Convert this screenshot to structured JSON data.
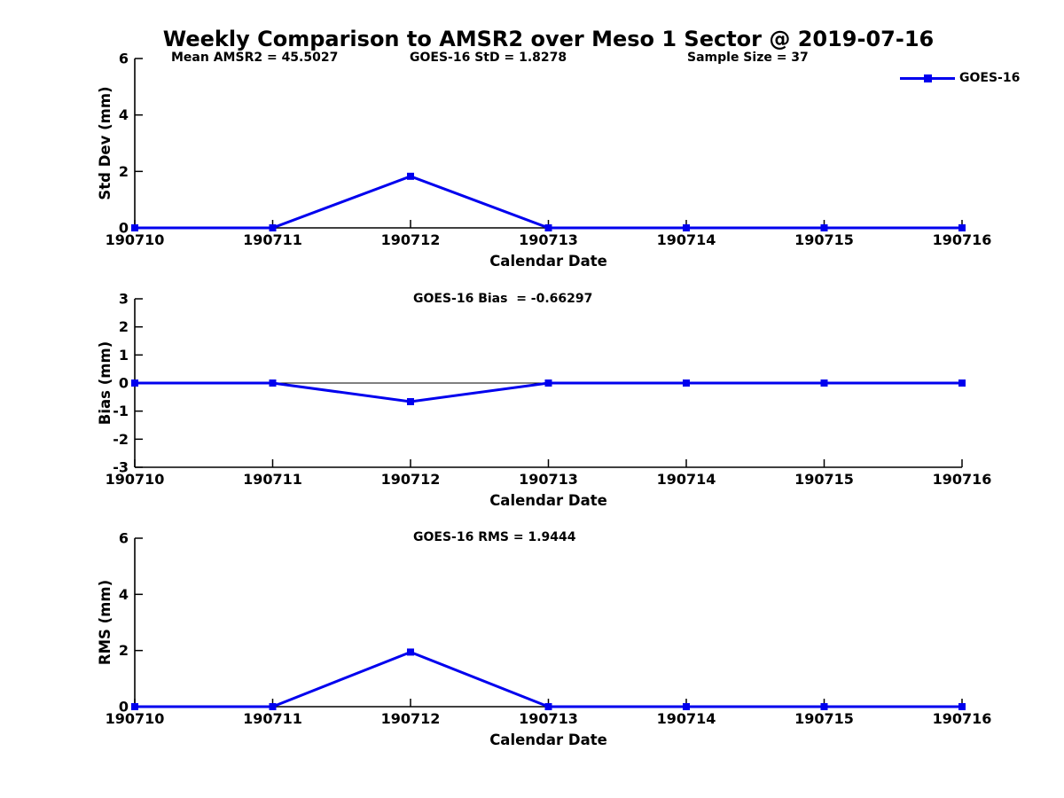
{
  "chart_data": {
    "type": "line",
    "title": "Weekly Comparison to AMSR2 over Meso 1 Sector @ 2019-07-16",
    "xlabel": "Calendar Date",
    "x_tick_labels": [
      "190710",
      "190711",
      "190712",
      "190713",
      "190714",
      "190715",
      "190716"
    ],
    "legend": {
      "label": "GOES-16",
      "color": "#0000EE",
      "marker": "square",
      "position": "top-right"
    },
    "line_color": "#0000EE",
    "axis_color": "#000000",
    "grid": false,
    "subplots": [
      {
        "id": "std-dev",
        "ylabel": "Std Dev (mm)",
        "ylim": [
          0,
          6
        ],
        "yticks": [
          0,
          2,
          4,
          6
        ],
        "annotations": [
          "Mean AMSR2 = 45.5027",
          "GOES-16 StD = 1.8278",
          "Sample Size = 37"
        ],
        "series": [
          {
            "name": "GOES-16",
            "values": [
              0,
              0,
              1.8278,
              0,
              0,
              0,
              0
            ]
          }
        ]
      },
      {
        "id": "bias",
        "title": "GOES-16 Bias  = -0.66297",
        "ylabel": "Bias (mm)",
        "ylim": [
          -3,
          3
        ],
        "yticks": [
          3,
          2,
          1,
          0,
          -1,
          -2,
          -3
        ],
        "zero_line": true,
        "series": [
          {
            "name": "GOES-16",
            "values": [
              0,
              0,
              -0.66297,
              0,
              0,
              0,
              0
            ]
          }
        ]
      },
      {
        "id": "rms",
        "title": "GOES-16 RMS = 1.9444",
        "ylabel": "RMS (mm)",
        "ylim": [
          0,
          6
        ],
        "yticks": [
          0,
          2,
          4,
          6
        ],
        "series": [
          {
            "name": "GOES-16",
            "values": [
              0,
              0,
              1.9444,
              0,
              0,
              0,
              0
            ]
          }
        ]
      }
    ]
  }
}
